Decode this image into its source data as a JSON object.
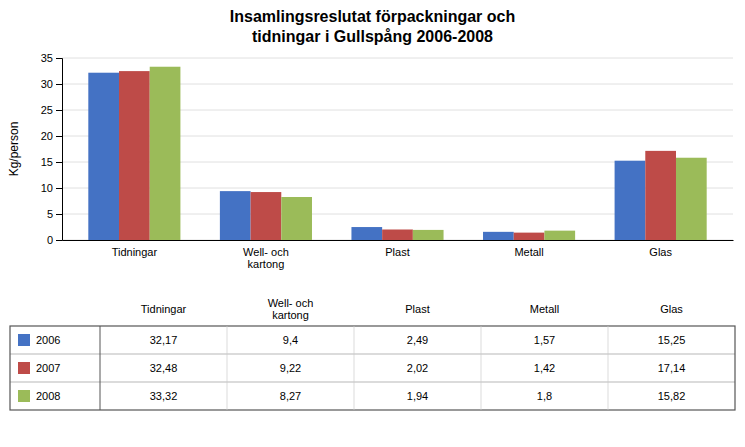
{
  "chart_data": {
    "type": "bar",
    "title": "Insamlingsreslutat förpackningar och\ntidningar i Gullspång 2006-2008",
    "ylabel": "Kg/person",
    "categories": [
      "Tidningar",
      "Well- och\nkartong",
      "Plast",
      "Metall",
      "Glas"
    ],
    "series": [
      {
        "name": "2006",
        "color": "#4472C4",
        "values": [
          32.17,
          9.4,
          2.49,
          1.57,
          15.25
        ],
        "value_labels": [
          "32,17",
          "9,4",
          "2,49",
          "1,57",
          "15,25"
        ]
      },
      {
        "name": "2007",
        "color": "#BE4B48",
        "values": [
          32.48,
          9.22,
          2.02,
          1.42,
          17.14
        ],
        "value_labels": [
          "32,48",
          "9,22",
          "2,02",
          "1,42",
          "17,14"
        ]
      },
      {
        "name": "2008",
        "color": "#9BBB59",
        "values": [
          33.32,
          8.27,
          1.94,
          1.8,
          15.82
        ],
        "value_labels": [
          "33,32",
          "8,27",
          "1,94",
          "1,8",
          "15,82"
        ]
      }
    ],
    "ylim": [
      0,
      35
    ],
    "yticks": [
      0,
      5,
      10,
      15,
      20,
      25,
      30,
      35
    ],
    "grid": true,
    "legend": "bottom"
  }
}
